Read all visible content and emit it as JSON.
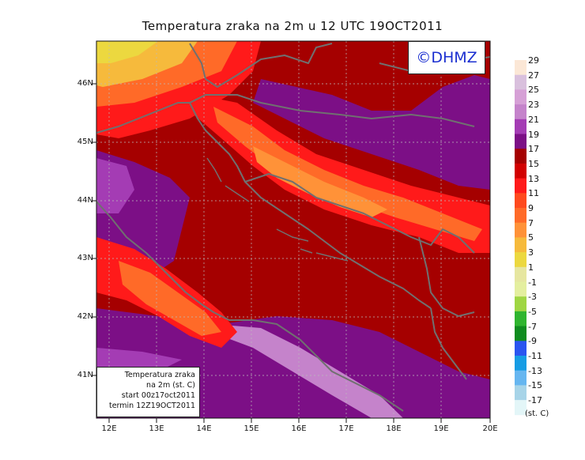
{
  "title": "Temperatura zraka na 2m u 12 UTC 19OCT2011",
  "logo": "©DHMZ",
  "info": {
    "line1": "Temperatura zraka",
    "line2": "na 2m (st. C)",
    "line3": "start 00z17oct2011",
    "line4": "termin 12Z19OCT2011"
  },
  "lat_labels": [
    "46N",
    "45N",
    "44N",
    "43N",
    "42N",
    "41N"
  ],
  "lon_labels": [
    "12E",
    "13E",
    "14E",
    "15E",
    "16E",
    "17E",
    "18E",
    "19E",
    "20E"
  ],
  "colorbar": {
    "labels": [
      "29",
      "27",
      "25",
      "23",
      "21",
      "19",
      "17",
      "15",
      "13",
      "11",
      "9",
      "7",
      "5",
      "3",
      "1",
      "-1",
      "-3",
      "-5",
      "-7",
      "-9",
      "-11",
      "-13",
      "-15",
      "-17"
    ],
    "unit": "(st. C)",
    "colors": [
      "#fbe7d6",
      "#d9c0dd",
      "#d6a0d6",
      "#c583cb",
      "#a43cb4",
      "#7c0f86",
      "#a50000",
      "#d20000",
      "#ff1a1a",
      "#ff4a1e",
      "#ff6a28",
      "#ff9238",
      "#f6ba3c",
      "#ecd83f",
      "#e6e6a0",
      "#e4ef9f",
      "#9fd643",
      "#2fb52f",
      "#0f8c1f",
      "#2a55f0",
      "#169ce4",
      "#66b6f0",
      "#a7d4e8",
      "#e3f6f8"
    ]
  }
}
